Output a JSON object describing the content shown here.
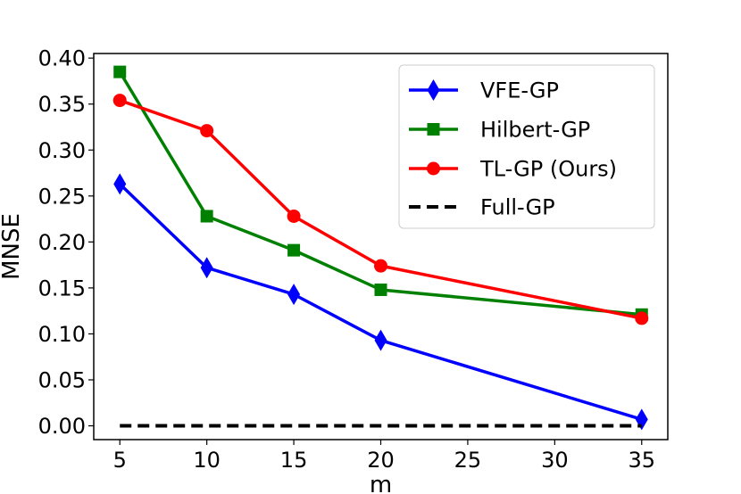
{
  "chart_data": {
    "type": "line",
    "title": "",
    "xlabel": "m",
    "ylabel": "MNSE",
    "xlim": [
      3.5,
      36.5
    ],
    "ylim": [
      -0.015,
      0.405
    ],
    "xticks": [
      5,
      10,
      15,
      20,
      25,
      30,
      35
    ],
    "xtick_labels": [
      "5",
      "10",
      "15",
      "20",
      "25",
      "30",
      "35"
    ],
    "yticks": [
      0.0,
      0.05,
      0.1,
      0.15,
      0.2,
      0.25,
      0.3,
      0.35,
      0.4
    ],
    "ytick_labels": [
      "0.00",
      "0.05",
      "0.10",
      "0.15",
      "0.20",
      "0.25",
      "0.30",
      "0.35",
      "0.40"
    ],
    "grid": false,
    "legend_position": "top-right",
    "series": [
      {
        "name": "VFE-GP",
        "color": "#0000ff",
        "marker": "diamond",
        "line": "solid",
        "x": [
          5,
          10,
          15,
          20,
          35
        ],
        "values": [
          0.263,
          0.172,
          0.143,
          0.093,
          0.007
        ]
      },
      {
        "name": "Hilbert-GP",
        "color": "#008000",
        "marker": "square",
        "line": "solid",
        "x": [
          5,
          10,
          15,
          20,
          35
        ],
        "values": [
          0.385,
          0.228,
          0.191,
          0.148,
          0.121
        ]
      },
      {
        "name": "TL-GP (Ours)",
        "color": "#ff0000",
        "marker": "circle",
        "line": "solid",
        "x": [
          5,
          10,
          15,
          20,
          35
        ],
        "values": [
          0.354,
          0.321,
          0.228,
          0.174,
          0.117
        ]
      },
      {
        "name": "Full-GP",
        "color": "#000000",
        "marker": "none",
        "line": "dashed",
        "x": [
          5,
          35
        ],
        "values": [
          0.0,
          0.0
        ]
      }
    ]
  }
}
